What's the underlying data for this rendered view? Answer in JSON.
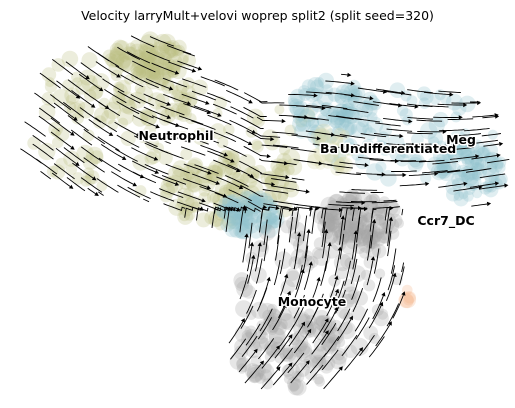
{
  "chart_data": {
    "type": "scatter",
    "title": "Velocity larryMult+velovi woprep split2 (split seed=320)",
    "xlabel": "",
    "ylabel": "",
    "grid": false,
    "axes_visible": false,
    "overlay": "velocity-streamlines",
    "stream_color": "#000000",
    "clusters": [
      {
        "name": "Neutrophil",
        "color": "#bcbd80"
      },
      {
        "name": "Undifferentiated",
        "color": "#8fc3cb"
      },
      {
        "name": "Monocyte",
        "color": "#a6a6a6"
      },
      {
        "name": "Meg",
        "color": "#8fc3cb"
      },
      {
        "name": "Ba",
        "color": "#d6d6a8"
      },
      {
        "name": "Ccr7_DC",
        "color": "#f5b58a"
      }
    ]
  }
}
